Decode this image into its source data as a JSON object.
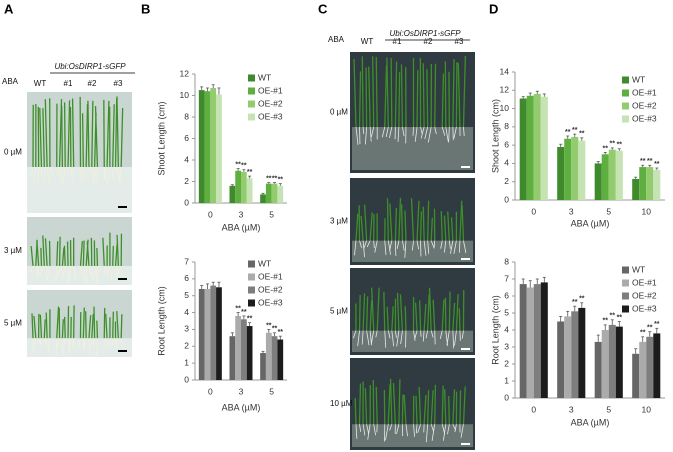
{
  "letters": [
    "A",
    "B",
    "C",
    "D"
  ],
  "panels": {
    "A": {
      "construct": "Ubi:OsDIRP1-sGFP",
      "treatment": "ABA",
      "lines": [
        "WT",
        "#1",
        "#2",
        "#3"
      ],
      "doses": [
        "0 µM",
        "3 µM",
        "5 µM"
      ]
    },
    "C": {
      "construct": "Ubi:OsDIRP1-sGFP",
      "treatment": "ABA",
      "lines": [
        "WT",
        "#1",
        "#2",
        "#3"
      ],
      "doses": [
        "0 µM",
        "3 µM",
        "5 µM",
        "10 µM"
      ]
    }
  },
  "chart_data": [
    {
      "type": "bar",
      "ylabel": "Shoot Length (cm)",
      "xlabel": "ABA (µM)",
      "categories": [
        "0",
        "3",
        "5"
      ],
      "ylim": [
        0,
        12
      ],
      "yticks": [
        0,
        2,
        4,
        6,
        8,
        10,
        12
      ],
      "legend": "upper right",
      "series": [
        {
          "name": "WT",
          "color": "#3f8b2c",
          "values": [
            10.5,
            1.6,
            0.8
          ],
          "errors": [
            0.3,
            0.1,
            0.1
          ],
          "significance": [
            null,
            null,
            null
          ]
        },
        {
          "name": "OE-#1",
          "color": "#5fae40",
          "values": [
            10.4,
            3.0,
            1.8
          ],
          "errors": [
            0.3,
            0.2,
            0.1
          ],
          "significance": [
            null,
            "**",
            "**"
          ]
        },
        {
          "name": "OE-#2",
          "color": "#92cc6e",
          "values": [
            10.7,
            2.9,
            1.8
          ],
          "errors": [
            0.3,
            0.2,
            0.1
          ],
          "significance": [
            null,
            "**",
            "**"
          ]
        },
        {
          "name": "OE-#3",
          "color": "#c6e3b3",
          "values": [
            10.1,
            2.3,
            1.6
          ],
          "errors": [
            0.6,
            0.2,
            0.2
          ],
          "significance": [
            null,
            "**",
            "**"
          ]
        }
      ]
    },
    {
      "type": "bar",
      "ylabel": "Root Length (cm)",
      "xlabel": "ABA (µM)",
      "categories": [
        "0",
        "3",
        "5"
      ],
      "ylim": [
        0,
        7
      ],
      "yticks": [
        0,
        1,
        2,
        3,
        4,
        5,
        6,
        7
      ],
      "legend": "upper right",
      "series": [
        {
          "name": "WT",
          "color": "#666666",
          "values": [
            5.4,
            2.6,
            1.6
          ],
          "errors": [
            0.2,
            0.2,
            0.1
          ],
          "significance": [
            null,
            null,
            null
          ]
        },
        {
          "name": "OE-#1",
          "color": "#ababab",
          "values": [
            5.4,
            3.8,
            2.8
          ],
          "errors": [
            0.3,
            0.2,
            0.2
          ],
          "significance": [
            null,
            "**",
            "**"
          ]
        },
        {
          "name": "OE-#2",
          "color": "#7e7e7e",
          "values": [
            5.6,
            3.6,
            2.6
          ],
          "errors": [
            0.2,
            0.2,
            0.2
          ],
          "significance": [
            null,
            "**",
            "**"
          ]
        },
        {
          "name": "OE-#3",
          "color": "#1c1c1c",
          "values": [
            5.5,
            3.2,
            2.4
          ],
          "errors": [
            0.3,
            0.2,
            0.2
          ],
          "significance": [
            null,
            "**",
            "**"
          ]
        }
      ]
    },
    {
      "type": "bar",
      "ylabel": "Shoot Length (cm)",
      "xlabel": "ABA (µM)",
      "categories": [
        "0",
        "3",
        "5",
        "10"
      ],
      "ylim": [
        0,
        14
      ],
      "yticks": [
        0,
        2,
        4,
        6,
        8,
        10,
        12,
        14
      ],
      "legend": "upper right",
      "series": [
        {
          "name": "WT",
          "color": "#3f8b2c",
          "values": [
            11.1,
            5.8,
            4.0,
            2.3
          ],
          "errors": [
            0.2,
            0.3,
            0.2,
            0.2
          ],
          "significance": [
            null,
            null,
            null,
            null
          ]
        },
        {
          "name": "OE-#1",
          "color": "#5fae40",
          "values": [
            11.4,
            6.7,
            5.0,
            3.6
          ],
          "errors": [
            0.3,
            0.3,
            0.2,
            0.2
          ],
          "significance": [
            null,
            "**",
            "**",
            "**"
          ]
        },
        {
          "name": "OE-#2",
          "color": "#92cc6e",
          "values": [
            11.6,
            6.9,
            5.5,
            3.6
          ],
          "errors": [
            0.3,
            0.3,
            0.2,
            0.2
          ],
          "significance": [
            null,
            "**",
            "**",
            "**"
          ]
        },
        {
          "name": "OE-#3",
          "color": "#c6e3b3",
          "values": [
            11.3,
            6.5,
            5.4,
            3.3
          ],
          "errors": [
            0.3,
            0.3,
            0.2,
            0.2
          ],
          "significance": [
            null,
            "**",
            "**",
            "**"
          ]
        }
      ]
    },
    {
      "type": "bar",
      "ylabel": "Root Length (cm)",
      "xlabel": "ABA (µM)",
      "categories": [
        "0",
        "3",
        "5",
        "10"
      ],
      "ylim": [
        0,
        8
      ],
      "yticks": [
        0,
        1,
        2,
        3,
        4,
        5,
        6,
        7,
        8
      ],
      "legend": "upper right",
      "series": [
        {
          "name": "WT",
          "color": "#666666",
          "values": [
            6.7,
            4.5,
            3.3,
            2.6
          ],
          "errors": [
            0.3,
            0.3,
            0.4,
            0.3
          ],
          "significance": [
            null,
            null,
            null,
            null
          ]
        },
        {
          "name": "OE-#1",
          "color": "#ababab",
          "values": [
            6.5,
            4.8,
            4.0,
            3.3
          ],
          "errors": [
            0.4,
            0.3,
            0.3,
            0.3
          ],
          "significance": [
            null,
            null,
            "**",
            "**"
          ]
        },
        {
          "name": "OE-#2",
          "color": "#7e7e7e",
          "values": [
            6.7,
            5.1,
            4.3,
            3.6
          ],
          "errors": [
            0.3,
            0.3,
            0.3,
            0.3
          ],
          "significance": [
            null,
            "**",
            "**",
            "**"
          ]
        },
        {
          "name": "OE-#3",
          "color": "#1c1c1c",
          "values": [
            6.8,
            5.3,
            4.2,
            3.8
          ],
          "errors": [
            0.3,
            0.3,
            0.3,
            0.3
          ],
          "significance": [
            null,
            "**",
            "**",
            "**"
          ]
        }
      ]
    }
  ]
}
